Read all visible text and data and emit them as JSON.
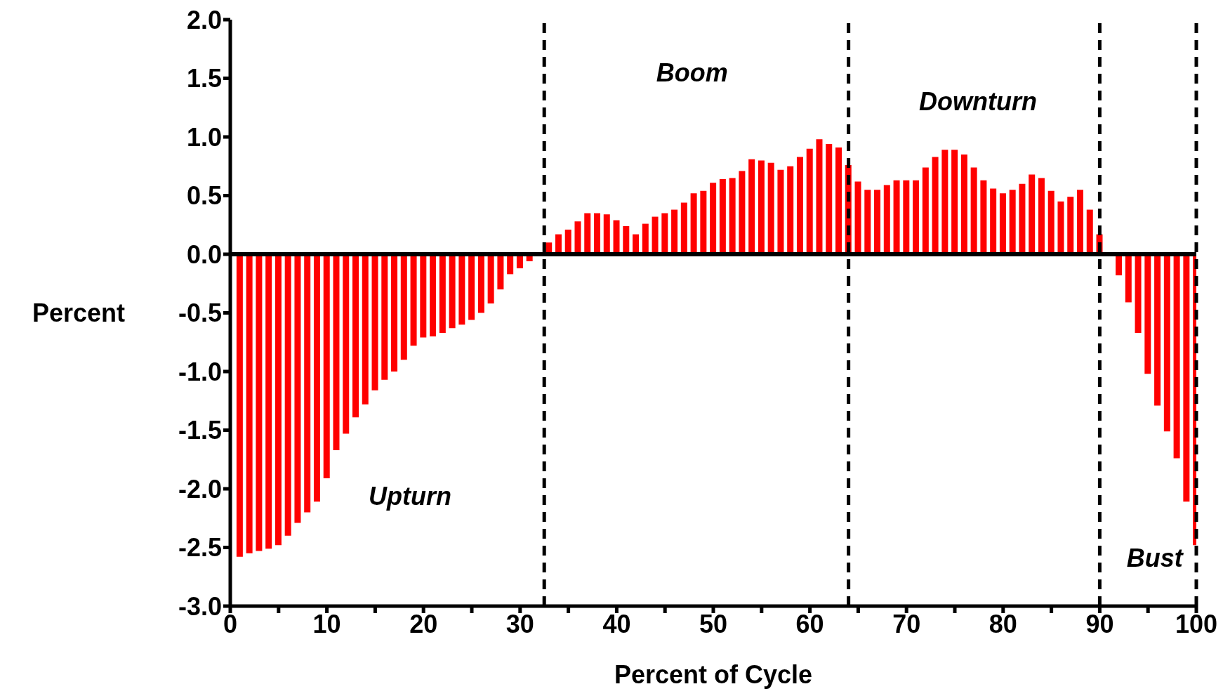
{
  "chart_data": {
    "type": "bar",
    "xlabel": "Percent of Cycle",
    "ylabel": "Percent",
    "color": "#ff0000",
    "x": [
      1,
      2,
      3,
      4,
      5,
      6,
      7,
      8,
      9,
      10,
      11,
      12,
      13,
      14,
      15,
      16,
      17,
      18,
      19,
      20,
      21,
      22,
      23,
      24,
      25,
      26,
      27,
      28,
      29,
      30,
      31,
      32,
      33,
      34,
      35,
      36,
      37,
      38,
      39,
      40,
      41,
      42,
      43,
      44,
      45,
      46,
      47,
      48,
      49,
      50,
      51,
      52,
      53,
      54,
      55,
      56,
      57,
      58,
      59,
      60,
      61,
      62,
      63,
      64,
      65,
      66,
      67,
      68,
      69,
      70,
      71,
      72,
      73,
      74,
      75,
      76,
      77,
      78,
      79,
      80,
      81,
      82,
      83,
      84,
      85,
      86,
      87,
      88,
      89,
      90,
      91,
      92,
      93,
      94,
      95,
      96,
      97,
      98,
      99,
      100
    ],
    "values": [
      -2.58,
      -2.55,
      -2.53,
      -2.51,
      -2.48,
      -2.4,
      -2.29,
      -2.2,
      -2.11,
      -1.91,
      -1.67,
      -1.53,
      -1.39,
      -1.28,
      -1.16,
      -1.07,
      -1.0,
      -0.9,
      -0.78,
      -0.71,
      -0.7,
      -0.67,
      -0.63,
      -0.6,
      -0.56,
      -0.5,
      -0.42,
      -0.3,
      -0.17,
      -0.12,
      -0.06,
      null,
      0.1,
      0.17,
      0.21,
      0.28,
      0.35,
      0.35,
      0.34,
      0.29,
      0.24,
      0.17,
      0.26,
      0.32,
      0.35,
      0.38,
      0.44,
      0.52,
      0.54,
      0.61,
      0.64,
      0.65,
      0.71,
      0.81,
      0.8,
      0.78,
      0.72,
      0.75,
      0.83,
      0.9,
      0.98,
      0.94,
      0.91,
      0.76,
      0.62,
      0.55,
      0.55,
      0.59,
      0.63,
      0.63,
      0.63,
      0.74,
      0.83,
      0.89,
      0.89,
      0.85,
      0.74,
      0.63,
      0.56,
      0.52,
      0.55,
      0.6,
      0.68,
      0.65,
      0.54,
      0.45,
      0.49,
      0.55,
      0.38,
      0.17,
      null,
      -0.18,
      -0.41,
      -0.67,
      -1.02,
      -1.29,
      -1.51,
      -1.74,
      -2.11,
      -2.48
    ],
    "xlim": [
      0,
      100
    ],
    "xticks": [
      0,
      {
        "value": 5,
        "label": null
      },
      10,
      {
        "value": 15,
        "label": null
      },
      20,
      {
        "value": 25,
        "label": null
      },
      30,
      {
        "value": 35,
        "label": null
      },
      40,
      {
        "value": 45,
        "label": null
      },
      50,
      {
        "value": 55,
        "label": null
      },
      60,
      {
        "value": 65,
        "label": null
      },
      70,
      {
        "value": 75,
        "label": null
      },
      80,
      {
        "value": 85,
        "label": null
      },
      90,
      {
        "value": 95,
        "label": null
      },
      100
    ],
    "ylim": [
      -3,
      2
    ],
    "yticks": [
      {
        "value": -3,
        "label": "-3.0"
      },
      {
        "value": -2.5,
        "label": "-2.5"
      },
      {
        "value": -2,
        "label": "-2.0"
      },
      {
        "value": -1.5,
        "label": "-1.5"
      },
      {
        "value": -1,
        "label": "-1.0"
      },
      {
        "value": -0.5,
        "label": "-0.5"
      },
      {
        "value": 0,
        "label": "0.0"
      },
      {
        "value": 0.5,
        "label": "0.5"
      },
      {
        "value": 1,
        "label": "1.0"
      },
      {
        "value": 1.5,
        "label": "1.5"
      },
      {
        "value": 2,
        "label": "2.0"
      }
    ],
    "ref_lines": [
      {
        "axis": "y",
        "value": 0,
        "label": null,
        "color": "#000000",
        "line_style": "solid"
      },
      {
        "axis": "x",
        "value": 32.5,
        "label": null,
        "color": "#000000",
        "line_style": "dashed"
      },
      {
        "axis": "x",
        "value": 64,
        "label": null,
        "color": "#000000",
        "line_style": "dashed"
      },
      {
        "axis": "x",
        "value": 90,
        "label": null,
        "color": "#000000",
        "line_style": "dashed"
      },
      {
        "axis": "x",
        "value": 100,
        "label": null,
        "color": "#000000",
        "line_style": "dashed"
      }
    ],
    "annotations": [
      "Boom",
      "Downturn",
      "Upturn",
      "Bust"
    ],
    "grid": false,
    "legend": false
  }
}
